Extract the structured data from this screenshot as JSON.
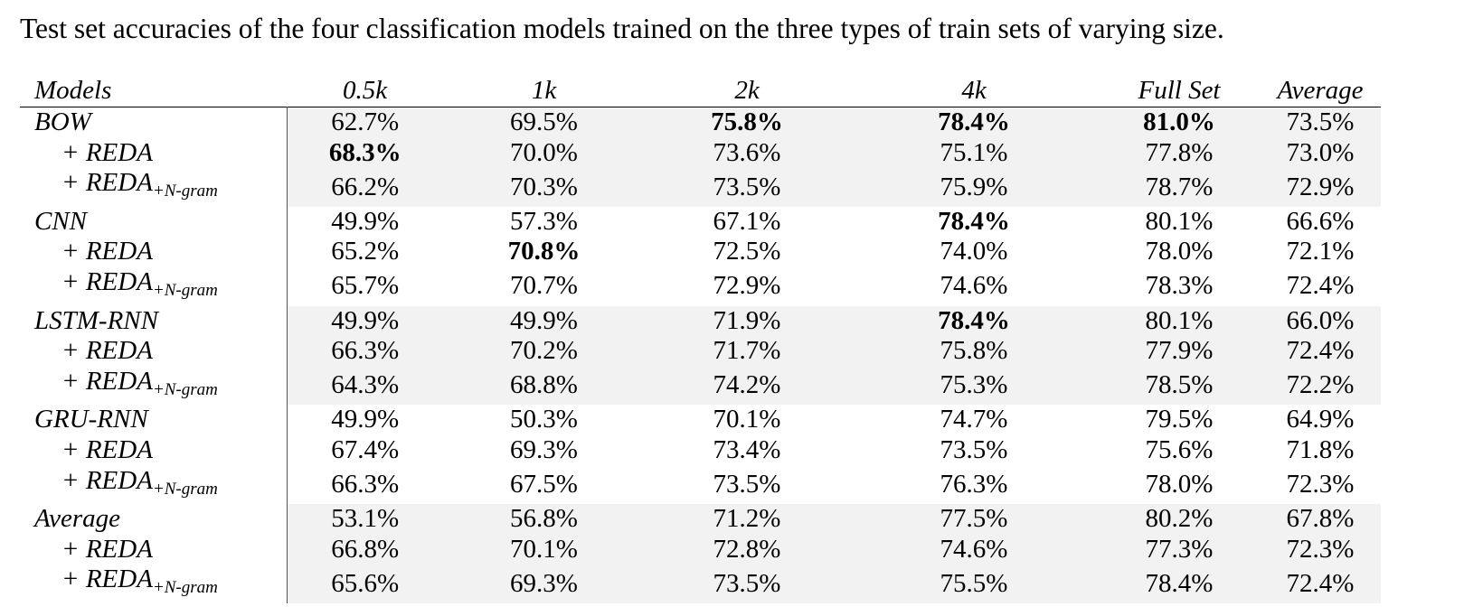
{
  "caption": "Test set accuracies of the four classification models trained on the three types of train sets of varying size.",
  "header": [
    "Models",
    "0.5k",
    "1k",
    "2k",
    "4k",
    "Full Set",
    "Average"
  ],
  "groups": [
    {
      "rows": [
        {
          "label": "BOW",
          "suffix": "",
          "values": [
            "62.7%",
            "69.5%",
            "75.8%",
            "78.4%",
            "81.0%",
            "73.5%"
          ],
          "bold": [
            2,
            3,
            4
          ]
        },
        {
          "label": "+ REDA",
          "suffix": "",
          "values": [
            "68.3%",
            "70.0%",
            "73.6%",
            "75.1%",
            "77.8%",
            "73.0%"
          ],
          "bold": [
            0
          ]
        },
        {
          "label": "+ REDA",
          "suffix": "+N-gram",
          "values": [
            "66.2%",
            "70.3%",
            "73.5%",
            "75.9%",
            "78.7%",
            "72.9%"
          ],
          "bold": []
        }
      ]
    },
    {
      "rows": [
        {
          "label": "CNN",
          "suffix": "",
          "values": [
            "49.9%",
            "57.3%",
            "67.1%",
            "78.4%",
            "80.1%",
            "66.6%"
          ],
          "bold": [
            3
          ]
        },
        {
          "label": "+ REDA",
          "suffix": "",
          "values": [
            "65.2%",
            "70.8%",
            "72.5%",
            "74.0%",
            "78.0%",
            "72.1%"
          ],
          "bold": [
            1
          ]
        },
        {
          "label": "+ REDA",
          "suffix": "+N-gram",
          "values": [
            "65.7%",
            "70.7%",
            "72.9%",
            "74.6%",
            "78.3%",
            "72.4%"
          ],
          "bold": []
        }
      ]
    },
    {
      "rows": [
        {
          "label": "LSTM-RNN",
          "suffix": "",
          "values": [
            "49.9%",
            "49.9%",
            "71.9%",
            "78.4%",
            "80.1%",
            "66.0%"
          ],
          "bold": [
            3
          ]
        },
        {
          "label": "+ REDA",
          "suffix": "",
          "values": [
            "66.3%",
            "70.2%",
            "71.7%",
            "75.8%",
            "77.9%",
            "72.4%"
          ],
          "bold": []
        },
        {
          "label": "+ REDA",
          "suffix": "+N-gram",
          "values": [
            "64.3%",
            "68.8%",
            "74.2%",
            "75.3%",
            "78.5%",
            "72.2%"
          ],
          "bold": []
        }
      ]
    },
    {
      "rows": [
        {
          "label": "GRU-RNN",
          "suffix": "",
          "values": [
            "49.9%",
            "50.3%",
            "70.1%",
            "74.7%",
            "79.5%",
            "64.9%"
          ],
          "bold": []
        },
        {
          "label": "+ REDA",
          "suffix": "",
          "values": [
            "67.4%",
            "69.3%",
            "73.4%",
            "73.5%",
            "75.6%",
            "71.8%"
          ],
          "bold": []
        },
        {
          "label": "+ REDA",
          "suffix": "+N-gram",
          "values": [
            "66.3%",
            "67.5%",
            "73.5%",
            "76.3%",
            "78.0%",
            "72.3%"
          ],
          "bold": []
        }
      ]
    },
    {
      "rows": [
        {
          "label": "Average",
          "suffix": "",
          "values": [
            "53.1%",
            "56.8%",
            "71.2%",
            "77.5%",
            "80.2%",
            "67.8%"
          ],
          "bold": []
        },
        {
          "label": "+ REDA",
          "suffix": "",
          "values": [
            "66.8%",
            "70.1%",
            "72.8%",
            "74.6%",
            "77.3%",
            "72.3%"
          ],
          "bold": []
        },
        {
          "label": "+ REDA",
          "suffix": "+N-gram",
          "values": [
            "65.6%",
            "69.3%",
            "73.5%",
            "75.5%",
            "78.4%",
            "72.4%"
          ],
          "bold": []
        }
      ]
    }
  ]
}
